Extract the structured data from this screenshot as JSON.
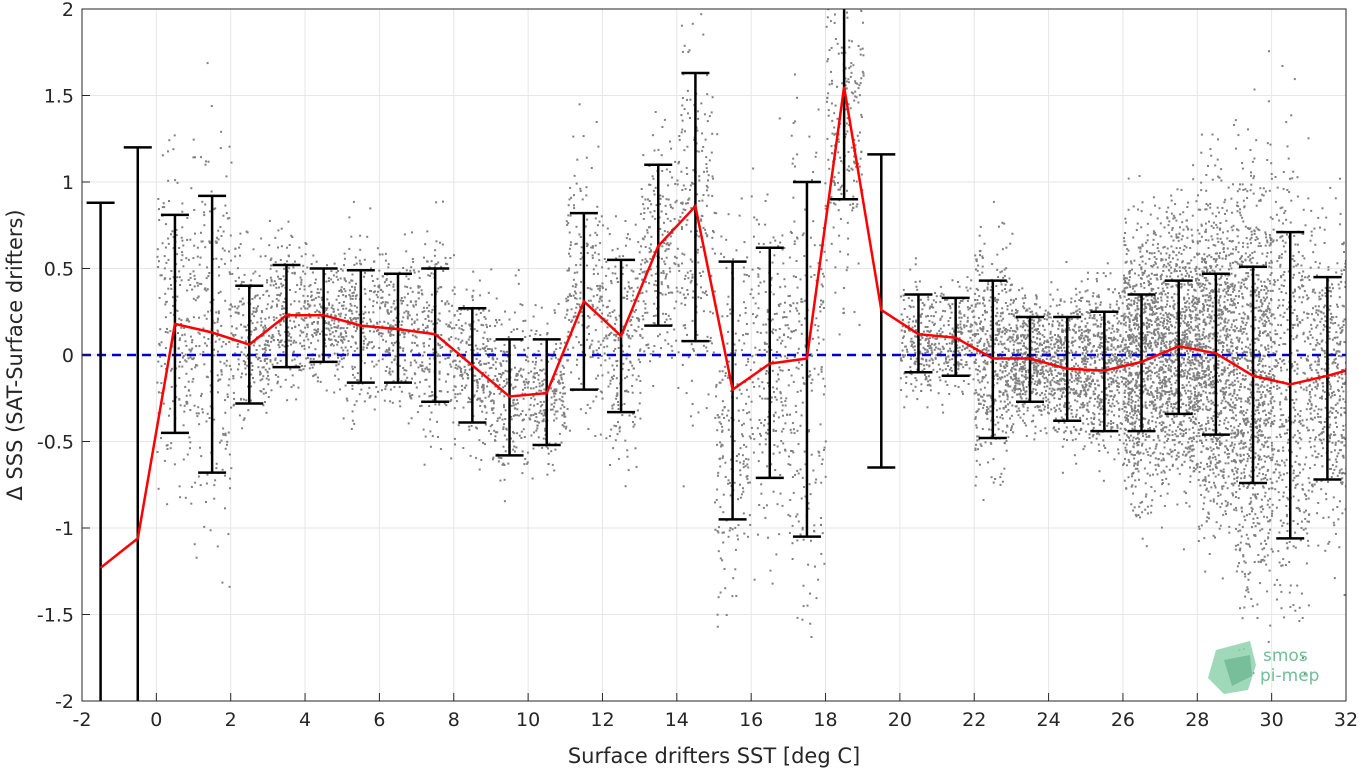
{
  "chart_data": {
    "type": "scatter",
    "title": "",
    "xlabel": "Surface drifters SST [deg C]",
    "ylabel": "Δ SSS (SAT-Surface drifters)",
    "xlim": [
      -2,
      32
    ],
    "ylim": [
      -2,
      2
    ],
    "xticks": [
      -2,
      0,
      2,
      4,
      6,
      8,
      10,
      12,
      14,
      16,
      18,
      20,
      22,
      24,
      26,
      28,
      30,
      32
    ],
    "yticks": [
      -2,
      -1.5,
      -1,
      -0.5,
      0,
      0.5,
      1,
      1.5,
      2
    ],
    "xtick_labels": [
      "-2",
      "0",
      "2",
      "4",
      "6",
      "8",
      "10",
      "12",
      "14",
      "16",
      "18",
      "20",
      "22",
      "24",
      "26",
      "28",
      "30",
      "32"
    ],
    "ytick_labels": [
      "-2",
      "-1.5",
      "-1",
      "-0.5",
      "0",
      "0.5",
      "1",
      "1.5",
      "2"
    ],
    "grid": true,
    "colors": {
      "scatter": "#808080",
      "mean_line": "#ff0000",
      "error_bars": "#000000",
      "zero_line": "#0000cc",
      "grid": "#e6e6e6"
    },
    "zero_line_y": 0,
    "scatter_density_centers": [
      {
        "x": 0.5,
        "y": 0.2
      },
      {
        "x": 1.5,
        "y": 0.15
      },
      {
        "x": 2.5,
        "y": 0.1
      },
      {
        "x": 3.5,
        "y": 0.25
      },
      {
        "x": 4.5,
        "y": 0.2
      },
      {
        "x": 5.5,
        "y": 0.2
      },
      {
        "x": 6.5,
        "y": 0.15
      },
      {
        "x": 7.5,
        "y": 0.1
      },
      {
        "x": 8.5,
        "y": -0.05
      },
      {
        "x": 9.5,
        "y": -0.2
      },
      {
        "x": 10.5,
        "y": -0.2
      },
      {
        "x": 11.5,
        "y": 0.35
      },
      {
        "x": 12.5,
        "y": 0.1
      },
      {
        "x": 13.5,
        "y": 0.6
      },
      {
        "x": 14.5,
        "y": 0.8
      },
      {
        "x": 15.5,
        "y": -0.3
      },
      {
        "x": 16.5,
        "y": -0.1
      },
      {
        "x": 17.5,
        "y": -0.1
      },
      {
        "x": 18.5,
        "y": 1.4
      },
      {
        "x": 20.5,
        "y": 0.1
      },
      {
        "x": 21.5,
        "y": 0.1
      },
      {
        "x": 22.5,
        "y": 0.0
      },
      {
        "x": 23.5,
        "y": -0.02
      },
      {
        "x": 24.5,
        "y": -0.05
      },
      {
        "x": 25.5,
        "y": -0.05
      },
      {
        "x": 26.5,
        "y": -0.02
      },
      {
        "x": 27.5,
        "y": 0.05
      },
      {
        "x": 28.5,
        "y": 0.0
      },
      {
        "x": 29.5,
        "y": -0.1
      },
      {
        "x": 30.5,
        "y": -0.15
      },
      {
        "x": 31.5,
        "y": -0.1
      }
    ],
    "series": [
      {
        "name": "",
        "kind": "mean_with_std",
        "x": [
          -1.5,
          -0.5,
          0.5,
          1.5,
          2.5,
          3.5,
          4.5,
          5.5,
          6.5,
          7.5,
          8.5,
          9.5,
          10.5,
          11.5,
          12.5,
          13.5,
          14.5,
          15.5,
          16.5,
          17.5,
          18.5,
          19.5,
          20.5,
          21.5,
          22.5,
          23.5,
          24.5,
          25.5,
          26.5,
          27.5,
          28.5,
          29.5,
          30.5,
          31.5
        ],
        "mean": [
          -1.23,
          -1.06,
          0.18,
          0.13,
          0.06,
          0.23,
          0.23,
          0.17,
          0.15,
          0.12,
          -0.06,
          -0.24,
          -0.22,
          0.31,
          0.11,
          0.63,
          0.86,
          -0.2,
          -0.05,
          -0.02,
          1.55,
          0.26,
          0.12,
          0.1,
          -0.02,
          -0.02,
          -0.08,
          -0.09,
          -0.04,
          0.05,
          0.01,
          -0.12,
          -0.17,
          -0.12
        ],
        "err_low": [
          -2.3,
          -2.3,
          -0.45,
          -0.68,
          -0.28,
          -0.07,
          -0.04,
          -0.16,
          -0.16,
          -0.27,
          -0.39,
          -0.58,
          -0.52,
          -0.2,
          -0.33,
          0.17,
          0.08,
          -0.95,
          -0.71,
          -1.05,
          0.9,
          -0.65,
          -0.1,
          -0.12,
          -0.48,
          -0.27,
          -0.38,
          -0.44,
          -0.44,
          -0.34,
          -0.46,
          -0.74,
          -1.06,
          -0.72
        ],
        "err_high": [
          0.88,
          1.2,
          0.81,
          0.92,
          0.4,
          0.52,
          0.5,
          0.49,
          0.47,
          0.5,
          0.27,
          0.09,
          0.09,
          0.82,
          0.55,
          1.1,
          1.63,
          0.54,
          0.62,
          1.0,
          2.3,
          1.16,
          0.35,
          0.33,
          0.43,
          0.22,
          0.22,
          0.25,
          0.35,
          0.43,
          0.47,
          0.51,
          0.71,
          0.45
        ]
      }
    ],
    "mean_line_end": {
      "x": 32,
      "y": -0.09
    }
  },
  "logo": {
    "line1": "smos",
    "line2": "pi-mep"
  }
}
